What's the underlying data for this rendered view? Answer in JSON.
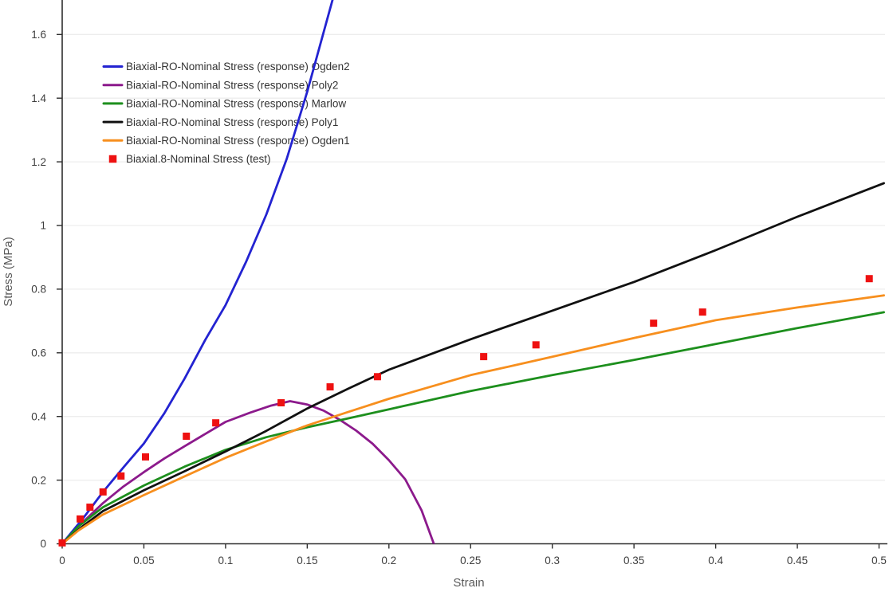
{
  "chart_data": {
    "type": "line",
    "title": "",
    "xlabel": "Strain",
    "ylabel": "Stress (MPa)",
    "xlim": [
      0,
      0.5055
    ],
    "ylim": [
      0,
      1.71
    ],
    "grid": "horizontal-only",
    "legend_position": "top-left-inside",
    "x_ticks": [
      {
        "value": 0,
        "label": "0"
      },
      {
        "value": 0.05,
        "label": "0.05"
      },
      {
        "value": 0.1,
        "label": "0.1"
      },
      {
        "value": 0.15,
        "label": "0.15"
      },
      {
        "value": 0.2,
        "label": "0.2"
      },
      {
        "value": 0.25,
        "label": "0.25"
      },
      {
        "value": 0.3,
        "label": "0.3"
      },
      {
        "value": 0.35,
        "label": "0.35"
      },
      {
        "value": 0.4,
        "label": "0.4"
      },
      {
        "value": 0.45,
        "label": "0.45"
      },
      {
        "value": 0.5,
        "label": "0.5"
      }
    ],
    "y_ticks": [
      {
        "value": 0,
        "label": "0"
      },
      {
        "value": 0.2,
        "label": "0.2"
      },
      {
        "value": 0.4,
        "label": "0.4"
      },
      {
        "value": 0.6,
        "label": "0.6"
      },
      {
        "value": 0.8,
        "label": "0.8"
      },
      {
        "value": 1,
        "label": "1"
      },
      {
        "value": 1.2,
        "label": "1.2"
      },
      {
        "value": 1.4,
        "label": "1.4"
      },
      {
        "value": 1.6,
        "label": "1.6"
      }
    ],
    "series": [
      {
        "id": "ogden2",
        "name": "Biaxial-RO-Nominal Stress (response) Ogden2",
        "color": "#2323d1",
        "style": "line",
        "points": [
          [
            0,
            0
          ],
          [
            0.0125,
            0.078
          ],
          [
            0.025,
            0.163
          ],
          [
            0.0375,
            0.24
          ],
          [
            0.05,
            0.315
          ],
          [
            0.0625,
            0.41
          ],
          [
            0.075,
            0.52
          ],
          [
            0.0875,
            0.64
          ],
          [
            0.1,
            0.75
          ],
          [
            0.1125,
            0.885
          ],
          [
            0.125,
            1.035
          ],
          [
            0.1375,
            1.21
          ],
          [
            0.15,
            1.42
          ],
          [
            0.1655,
            1.709
          ]
        ]
      },
      {
        "id": "poly2",
        "name": "Biaxial-RO-Nominal Stress (response) Poly2",
        "color": "#8c1a8c",
        "style": "line",
        "points": [
          [
            0,
            0
          ],
          [
            0.0125,
            0.067
          ],
          [
            0.025,
            0.128
          ],
          [
            0.0375,
            0.18
          ],
          [
            0.05,
            0.225
          ],
          [
            0.0625,
            0.268
          ],
          [
            0.075,
            0.307
          ],
          [
            0.0875,
            0.345
          ],
          [
            0.1,
            0.383
          ],
          [
            0.115,
            0.412
          ],
          [
            0.1275,
            0.4335
          ],
          [
            0.1395,
            0.448
          ],
          [
            0.15,
            0.4375
          ],
          [
            0.16,
            0.4185
          ],
          [
            0.17,
            0.3895
          ],
          [
            0.18,
            0.3555
          ],
          [
            0.19,
            0.3145
          ],
          [
            0.2,
            0.2625
          ],
          [
            0.21,
            0.2025
          ],
          [
            0.22,
            0.105
          ],
          [
            0.2275,
            0
          ]
        ]
      },
      {
        "id": "marlow",
        "name": "Biaxial-RO-Nominal Stress (response) Marlow",
        "color": "#1d8f1d",
        "style": "line",
        "points": [
          [
            0,
            0
          ],
          [
            0.01,
            0.055
          ],
          [
            0.025,
            0.115
          ],
          [
            0.05,
            0.183
          ],
          [
            0.075,
            0.2425
          ],
          [
            0.1,
            0.295
          ],
          [
            0.125,
            0.335
          ],
          [
            0.15,
            0.366
          ],
          [
            0.175,
            0.394
          ],
          [
            0.2,
            0.4225
          ],
          [
            0.25,
            0.48
          ],
          [
            0.3,
            0.53
          ],
          [
            0.35,
            0.5775
          ],
          [
            0.4,
            0.6275
          ],
          [
            0.45,
            0.6775
          ],
          [
            0.503,
            0.7275
          ]
        ]
      },
      {
        "id": "poly1",
        "name": "Biaxial-RO-Nominal Stress (response) Poly1",
        "color": "#111111",
        "style": "line",
        "points": [
          [
            0,
            0
          ],
          [
            0.0125,
            0.055
          ],
          [
            0.025,
            0.103
          ],
          [
            0.05,
            0.168
          ],
          [
            0.075,
            0.228
          ],
          [
            0.1,
            0.29
          ],
          [
            0.125,
            0.355
          ],
          [
            0.15,
            0.425
          ],
          [
            0.175,
            0.487
          ],
          [
            0.2,
            0.547
          ],
          [
            0.25,
            0.6425
          ],
          [
            0.3,
            0.7325
          ],
          [
            0.35,
            0.8225
          ],
          [
            0.4,
            0.9225
          ],
          [
            0.45,
            1.0275
          ],
          [
            0.503,
            1.133
          ]
        ]
      },
      {
        "id": "ogden1",
        "name": "Biaxial-RO-Nominal Stress (response) Ogden1",
        "color": "#f78f1e",
        "style": "line",
        "points": [
          [
            0,
            0
          ],
          [
            0.01,
            0.042
          ],
          [
            0.025,
            0.092
          ],
          [
            0.05,
            0.153
          ],
          [
            0.075,
            0.212
          ],
          [
            0.1,
            0.27
          ],
          [
            0.125,
            0.322
          ],
          [
            0.15,
            0.372
          ],
          [
            0.175,
            0.414
          ],
          [
            0.2,
            0.4555
          ],
          [
            0.25,
            0.53
          ],
          [
            0.3,
            0.5875
          ],
          [
            0.35,
            0.6465
          ],
          [
            0.4,
            0.7025
          ],
          [
            0.45,
            0.7425
          ],
          [
            0.503,
            0.7805
          ]
        ]
      },
      {
        "id": "test",
        "name": "Biaxial.8-Nominal Stress (test)",
        "color": "#ee1111",
        "style": "scatter",
        "marker": "square",
        "points": [
          [
            0,
            0.003
          ],
          [
            0.011,
            0.078
          ],
          [
            0.017,
            0.115
          ],
          [
            0.025,
            0.163
          ],
          [
            0.036,
            0.213
          ],
          [
            0.051,
            0.273
          ],
          [
            0.076,
            0.338
          ],
          [
            0.094,
            0.38
          ],
          [
            0.134,
            0.443
          ],
          [
            0.164,
            0.493
          ],
          [
            0.193,
            0.525
          ],
          [
            0.258,
            0.588
          ],
          [
            0.29,
            0.625
          ],
          [
            0.362,
            0.693
          ],
          [
            0.392,
            0.728
          ],
          [
            0.494,
            0.833
          ]
        ]
      }
    ]
  },
  "colors": {
    "background": "#ffffff",
    "grid": "#ededed",
    "axis": "#2e2e2e",
    "tick_text": "#3d3d3d",
    "axis_title_text": "#595959",
    "legend_text": "#333333"
  }
}
